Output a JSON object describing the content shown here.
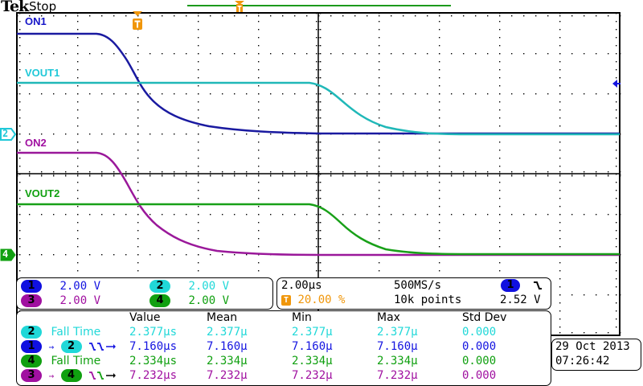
{
  "header": {
    "brand": "Tek",
    "status": "Stop"
  },
  "colors": {
    "ch1": "#1414c8",
    "ch2": "#20c8c8",
    "ch3": "#a010a0",
    "ch4": "#10a010",
    "trigger": "#f0960a",
    "record_bar": "#1c9a1c"
  },
  "traces": {
    "ch1_label": "ON1",
    "ch2_label": "VOUT1",
    "ch3_label": "ON2",
    "ch4_label": "VOUT2"
  },
  "markers": {
    "ch2_ground": "2",
    "ch4_ground": "4",
    "trigger_label": "T"
  },
  "channel_panel": {
    "rows": [
      {
        "ch": "1",
        "scale": "2.00 V"
      },
      {
        "ch": "2",
        "scale": "2.00 V"
      },
      {
        "ch": "3",
        "scale": "2.00 V"
      },
      {
        "ch": "4",
        "scale": "2.00 V"
      }
    ]
  },
  "horizontal_panel": {
    "time_per_div": "2.00µs",
    "sample_rate": "500MS/s",
    "trigger_position": "20.00 %",
    "record_length": "10k points",
    "trigger_source": "1",
    "trigger_slope": "falling",
    "trigger_level": "2.52 V"
  },
  "measurements": {
    "headers": [
      "Value",
      "Mean",
      "Min",
      "Max",
      "Std Dev"
    ],
    "rows": [
      {
        "source": "2",
        "target": "",
        "name": "Fall Time",
        "value": "2.377µs",
        "mean": "2.377µ",
        "min": "2.377µ",
        "max": "2.377µ",
        "std": "0.000"
      },
      {
        "source": "1",
        "target": "2",
        "name": "delay-fall-fall",
        "value": "7.160µs",
        "mean": "7.160µ",
        "min": "7.160µ",
        "max": "7.160µ",
        "std": "0.000"
      },
      {
        "source": "4",
        "target": "",
        "name": "Fall Time",
        "value": "2.334µs",
        "mean": "2.334µ",
        "min": "2.334µ",
        "max": "2.334µ",
        "std": "0.000"
      },
      {
        "source": "3",
        "target": "4",
        "name": "delay-fall-fall",
        "value": "7.232µs",
        "mean": "7.232µ",
        "min": "7.232µ",
        "max": "7.232µ",
        "std": "0.000"
      }
    ]
  },
  "datetime": {
    "date": "29 Oct  2013",
    "time": "07:26:42"
  }
}
